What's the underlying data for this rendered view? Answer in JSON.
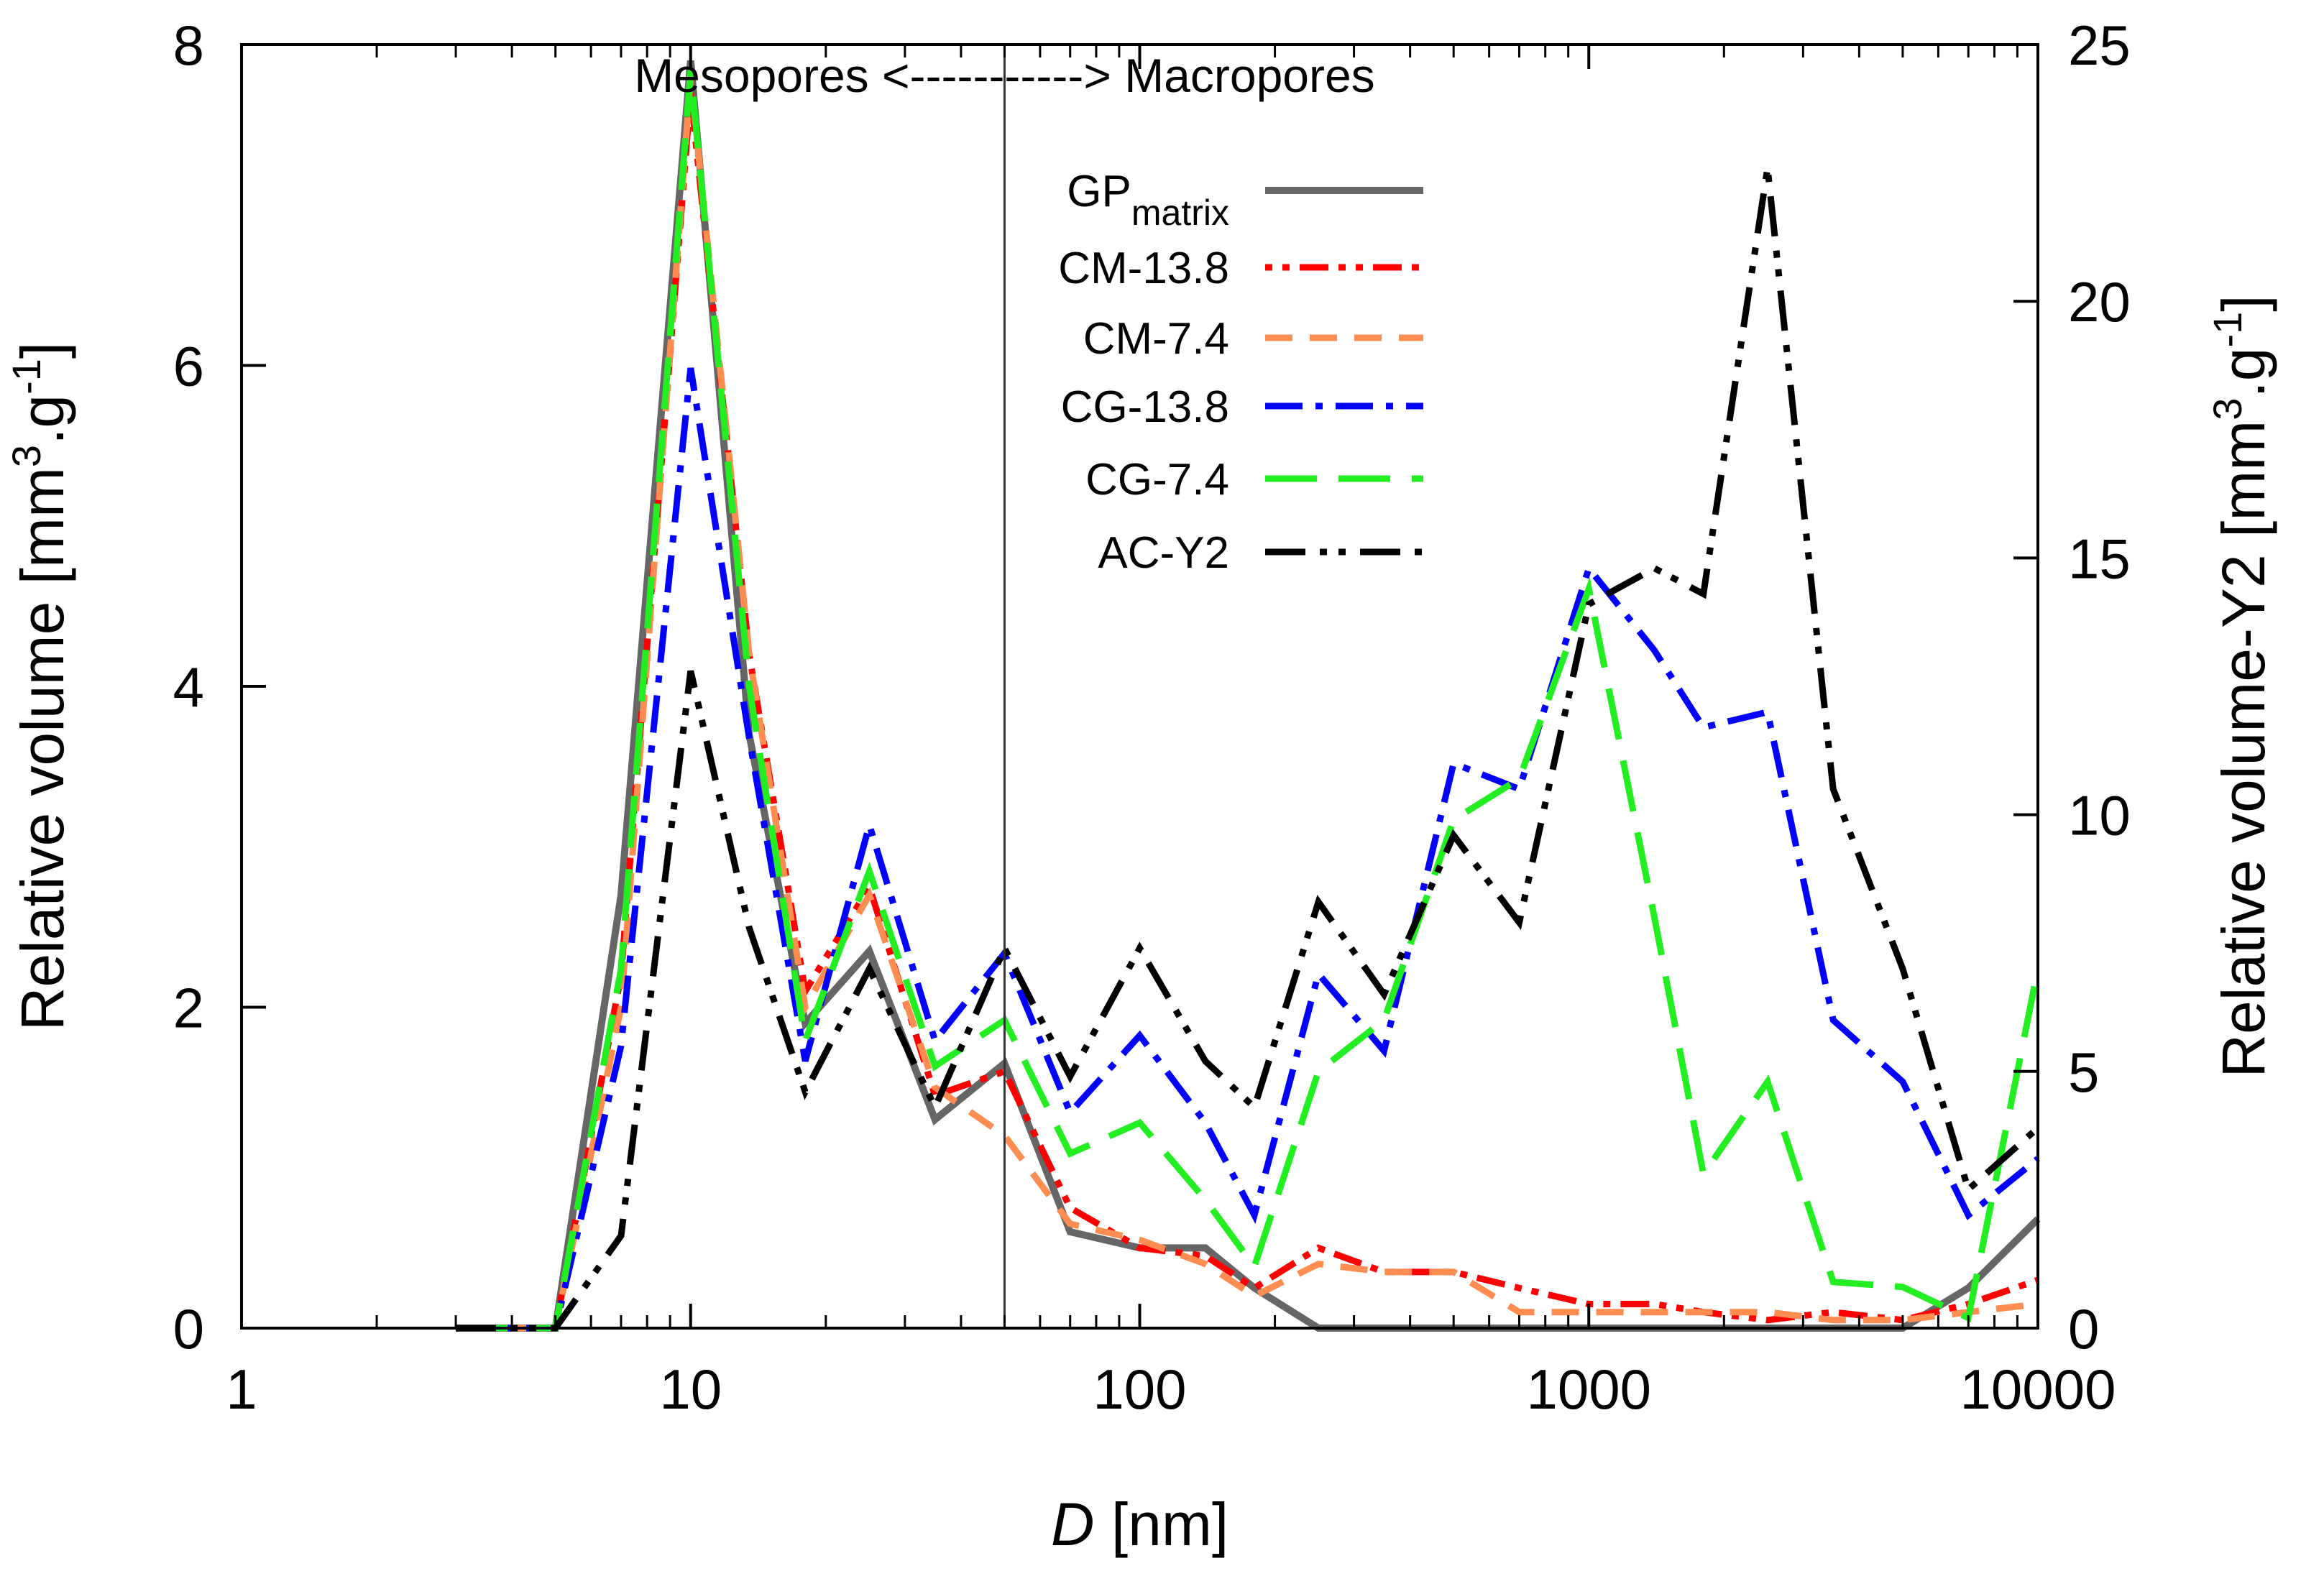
{
  "chart_data": {
    "type": "line",
    "xscale": "log",
    "xlim": [
      1,
      10000
    ],
    "ylim_left": [
      0,
      8
    ],
    "ylim_right": [
      0,
      25
    ],
    "x_ticks": [
      1,
      10,
      100,
      1000,
      10000
    ],
    "x_tick_labels": [
      "1",
      "10",
      "100",
      "1000",
      "10000"
    ],
    "y_left_ticks": [
      0,
      2,
      4,
      6,
      8
    ],
    "y_left_tick_labels": [
      "0",
      "2",
      "4",
      "6",
      "8"
    ],
    "y_right_ticks": [
      0,
      5,
      10,
      15,
      20,
      25
    ],
    "y_right_tick_labels": [
      "0",
      "5",
      "10",
      "15",
      "20",
      "25"
    ],
    "xlabel_italic": "D",
    "xlabel_rest": " [nm]",
    "ylabel_left": {
      "main": "Relative volume [mm",
      "sup1": "3",
      "mid": ".g",
      "sup2": "-1",
      "end": "]"
    },
    "ylabel_right": {
      "main": "Relative volume-Y2 [mm",
      "sup1": "3",
      "mid": ".g",
      "sup2": "-1",
      "end": "]"
    },
    "annotation": "Mesopores <-----------> Macropores",
    "divider_x": 50,
    "legend": [
      {
        "label": "GP",
        "subscript": "matrix"
      },
      {
        "label": "CM-13.8"
      },
      {
        "label": "CM-7.4"
      },
      {
        "label": "CG-13.8"
      },
      {
        "label": "CG-7.4"
      },
      {
        "label": "AC-Y2"
      }
    ],
    "series": [
      {
        "name": "GPmatrix",
        "axis": "left",
        "color": "#666666",
        "style": "solid",
        "x": [
          3,
          5,
          7,
          10,
          13.5,
          18,
          25,
          35,
          50,
          70,
          100,
          140,
          180,
          250,
          350,
          500,
          700,
          1000,
          1400,
          1800,
          2500,
          3500,
          5000,
          7000,
          10000
        ],
        "y": [
          0,
          0,
          2.7,
          7.9,
          3.7,
          1.9,
          2.35,
          1.3,
          1.65,
          0.6,
          0.5,
          0.5,
          0.25,
          0,
          0,
          0,
          0,
          0,
          0,
          0,
          0,
          0,
          0,
          0.25,
          0.68
        ]
      },
      {
        "name": "CM-13.8",
        "axis": "left",
        "color": "#ff0000",
        "style": "dot-dash",
        "x": [
          3,
          5,
          7,
          10,
          13.5,
          18,
          25,
          35,
          50,
          70,
          100,
          140,
          180,
          250,
          350,
          500,
          700,
          1000,
          1400,
          1800,
          2500,
          3500,
          5000,
          7000,
          10000
        ],
        "y": [
          0,
          0,
          2.2,
          7.7,
          4.2,
          2.1,
          2.75,
          1.45,
          1.6,
          0.75,
          0.5,
          0.45,
          0.25,
          0.5,
          0.35,
          0.35,
          0.25,
          0.15,
          0.15,
          0.1,
          0.05,
          0.1,
          0.05,
          0.15,
          0.3
        ]
      },
      {
        "name": "CM-7.4",
        "axis": "left",
        "color": "#ff8c50",
        "style": "dash",
        "x": [
          3,
          5,
          7,
          10,
          13.5,
          18,
          25,
          35,
          50,
          70,
          100,
          140,
          180,
          250,
          350,
          500,
          700,
          1000,
          1400,
          1800,
          2500,
          3500,
          5000,
          7000,
          10000
        ],
        "y": [
          0,
          0,
          2.0,
          7.8,
          4.2,
          2.0,
          2.7,
          1.5,
          1.2,
          0.65,
          0.55,
          0.4,
          0.2,
          0.4,
          0.35,
          0.35,
          0.1,
          0.1,
          0.1,
          0.1,
          0.1,
          0.05,
          0.05,
          0.1,
          0.15
        ]
      },
      {
        "name": "CG-13.8",
        "axis": "right",
        "color": "#0000ff",
        "style": "dash-dot",
        "x": [
          3,
          5,
          7,
          10,
          13.5,
          18,
          25,
          35,
          50,
          70,
          100,
          140,
          180,
          250,
          350,
          500,
          700,
          1000,
          1400,
          1800,
          2500,
          3500,
          5000,
          7000,
          10000
        ],
        "y": [
          0,
          0,
          5.5,
          18.7,
          11.5,
          5.2,
          9.8,
          5.6,
          7.3,
          4.2,
          5.7,
          4.0,
          2.2,
          6.9,
          5.4,
          11.0,
          10.5,
          14.8,
          13.2,
          11.7,
          12.0,
          6.0,
          4.8,
          2.2,
          3.3
        ]
      },
      {
        "name": "CG-7.4",
        "axis": "right",
        "color": "#22ee22",
        "style": "long-dash",
        "x": [
          3,
          5,
          7,
          10,
          13.5,
          18,
          25,
          35,
          50,
          70,
          100,
          140,
          180,
          250,
          350,
          500,
          700,
          1000,
          1400,
          1800,
          2500,
          3500,
          5000,
          7000,
          10000
        ],
        "y": [
          0,
          0,
          7.0,
          24.5,
          12.5,
          5.6,
          8.9,
          5.1,
          6.0,
          3.4,
          4.0,
          2.5,
          1.2,
          5.0,
          6.0,
          9.9,
          10.7,
          14.4,
          8.0,
          3.0,
          4.8,
          0.9,
          0.8,
          0.2,
          7.0
        ]
      },
      {
        "name": "AC-Y2",
        "axis": "right",
        "color": "#000000",
        "style": "dash-dot-dot",
        "x": [
          3,
          5,
          7,
          10,
          13.5,
          18,
          25,
          35,
          50,
          70,
          100,
          140,
          180,
          250,
          350,
          500,
          700,
          1000,
          1400,
          1800,
          2500,
          3500,
          5000,
          7000,
          10000
        ],
        "y": [
          0,
          0,
          1.8,
          12.8,
          7.8,
          4.6,
          7.0,
          4.3,
          7.4,
          4.9,
          7.4,
          5.2,
          4.3,
          8.3,
          6.5,
          9.6,
          7.9,
          14.1,
          14.8,
          14.3,
          22.6,
          10.5,
          7.0,
          2.7,
          3.9
        ]
      }
    ]
  }
}
